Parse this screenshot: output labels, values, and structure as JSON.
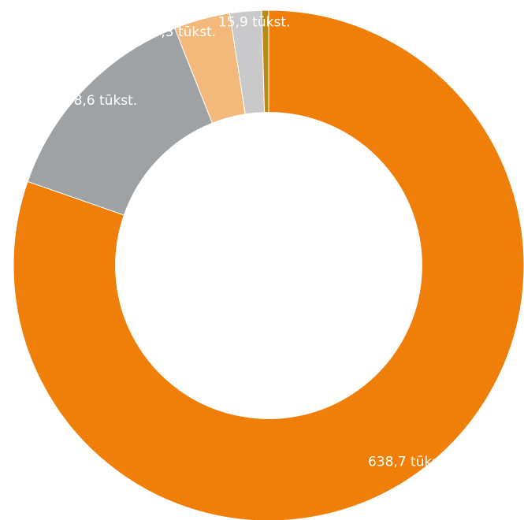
{
  "chart_data": {
    "type": "pie",
    "title": "",
    "unit": "tūkst.",
    "slices": [
      {
        "value": 638.7,
        "label": "638,7 tūkst.",
        "color": "#f07f09"
      },
      {
        "value": 108.6,
        "label": "108,6 tūkst.",
        "color": "#9ea2a5"
      },
      {
        "value": 28.3,
        "label": "28,3 tūkst.",
        "color": "#f3b97a"
      },
      {
        "value": 15.9,
        "label": "15,9 tūkst.",
        "color": "#c9c9cb"
      },
      {
        "value": 3.5,
        "label": "",
        "color": "#b98a14"
      }
    ],
    "start_angle_deg": 0,
    "direction": "clockwise",
    "hole_ratio": 0.6
  }
}
